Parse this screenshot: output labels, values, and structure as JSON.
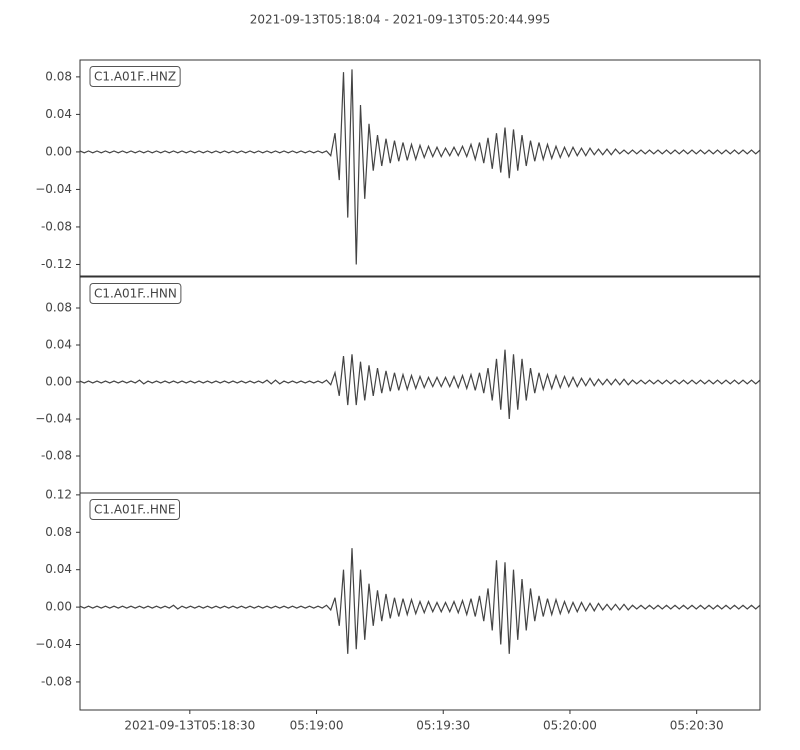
{
  "chart_data": [
    {
      "type": "line",
      "title": "2021-09-13T05:18:04  -  2021-09-13T05:20:44.995",
      "annotation": "C1.A01F..HNZ",
      "xlim": [
        "2021-09-13T05:18:04",
        "2021-09-13T05:20:44.995"
      ],
      "ylim": [
        -0.1323,
        0.098
      ],
      "yticks": [
        -0.12,
        -0.08,
        {
          "value": -0.04,
          "label": "−0.04"
        },
        {
          "value": 0,
          "label": "0.00"
        },
        0.04,
        0.08
      ],
      "series": [
        {
          "color": "#444444",
          "values": [
            0.001,
            -0.001,
            0.001,
            -0.001,
            0.001,
            -0.001,
            0.001,
            -0.001,
            0.001,
            -0.001,
            0.001,
            -0.001,
            0.001,
            -0.001,
            0.001,
            -0.001,
            0.001,
            -0.001,
            0.001,
            -0.001,
            0.001,
            -0.001,
            0.001,
            -0.001,
            0.001,
            -0.001,
            0.001,
            -0.001,
            0.001,
            -0.001,
            0.001,
            -0.001,
            0.001,
            -0.001,
            0.001,
            -0.001,
            0.001,
            -0.001,
            0.001,
            -0.001,
            0.001,
            -0.001,
            0.001,
            -0.001,
            0.001,
            -0.001,
            0.001,
            -0.001,
            0.001,
            -0.001,
            0.001,
            -0.001,
            0.001,
            -0.001,
            0.001,
            -0.001,
            0.001,
            -0.001,
            0.001,
            -0.004,
            0.02,
            -0.03,
            0.085,
            -0.07,
            0.088,
            -0.12,
            0.05,
            -0.05,
            0.03,
            -0.02,
            0.018,
            -0.015,
            0.014,
            -0.012,
            0.012,
            -0.01,
            0.01,
            -0.009,
            0.008,
            -0.008,
            0.007,
            -0.006,
            0.006,
            -0.005,
            0.005,
            -0.005,
            0.004,
            -0.004,
            0.005,
            -0.004,
            0.006,
            -0.005,
            0.008,
            -0.008,
            0.01,
            -0.012,
            0.015,
            -0.018,
            0.02,
            -0.022,
            0.026,
            -0.028,
            0.024,
            -0.02,
            0.018,
            -0.015,
            0.012,
            -0.01,
            0.01,
            -0.008,
            0.008,
            -0.007,
            0.006,
            -0.006,
            0.005,
            -0.005,
            0.005,
            -0.004,
            0.004,
            -0.004,
            0.004,
            -0.003,
            0.003,
            -0.003,
            0.003,
            -0.003,
            0.003,
            -0.002,
            0.002,
            -0.002,
            0.002,
            -0.002,
            0.002,
            -0.002,
            0.002,
            -0.002,
            0.002,
            -0.002,
            0.002,
            -0.002,
            0.002,
            -0.002,
            0.002,
            -0.002,
            0.002,
            -0.002,
            0.002,
            -0.002,
            0.002,
            -0.002,
            0.002,
            -0.002,
            0.002,
            -0.002,
            0.002,
            -0.002,
            0.002,
            -0.002,
            0.002,
            -0.002,
            0.002
          ]
        }
      ]
    },
    {
      "type": "line",
      "annotation": "C1.A01F..HNN",
      "xlim": [
        "2021-09-13T05:18:04",
        "2021-09-13T05:20:44.995"
      ],
      "ylim": [
        -0.12,
        0.1135
      ],
      "yticks": [
        -0.08,
        {
          "value": -0.04,
          "label": "−0.04"
        },
        {
          "value": 0,
          "label": "0.00"
        },
        0.04,
        0.08
      ],
      "series": [
        {
          "color": "#444444",
          "values": [
            0.001,
            -0.001,
            0.001,
            -0.001,
            0.001,
            -0.001,
            0.001,
            -0.001,
            0.001,
            -0.001,
            0.001,
            -0.001,
            0.001,
            -0.001,
            0.002,
            -0.002,
            0.001,
            -0.001,
            0.001,
            -0.001,
            0.001,
            -0.001,
            0.001,
            -0.001,
            0.001,
            -0.001,
            0.001,
            -0.001,
            0.001,
            -0.001,
            0.001,
            -0.001,
            0.001,
            -0.001,
            0.001,
            -0.001,
            0.001,
            -0.001,
            0.001,
            -0.001,
            0.001,
            -0.001,
            0.001,
            -0.001,
            0.002,
            -0.002,
            0.002,
            -0.002,
            0.001,
            -0.001,
            0.001,
            -0.001,
            0.001,
            -0.001,
            0.001,
            -0.001,
            0.001,
            -0.001,
            0.002,
            -0.003,
            0.01,
            -0.015,
            0.028,
            -0.025,
            0.03,
            -0.025,
            0.022,
            -0.02,
            0.018,
            -0.015,
            0.015,
            -0.012,
            0.012,
            -0.01,
            0.01,
            -0.009,
            0.008,
            -0.008,
            0.007,
            -0.007,
            0.006,
            -0.006,
            0.005,
            -0.005,
            0.005,
            -0.005,
            0.005,
            -0.005,
            0.006,
            -0.006,
            0.007,
            -0.007,
            0.008,
            -0.009,
            0.01,
            -0.012,
            0.015,
            -0.02,
            0.025,
            -0.03,
            0.035,
            -0.04,
            0.03,
            -0.03,
            0.025,
            -0.02,
            0.015,
            -0.012,
            0.01,
            -0.008,
            0.008,
            -0.007,
            0.007,
            -0.006,
            0.006,
            -0.005,
            0.005,
            -0.005,
            0.004,
            -0.004,
            0.004,
            -0.004,
            0.003,
            -0.003,
            0.003,
            -0.003,
            0.003,
            -0.003,
            0.003,
            -0.003,
            0.002,
            -0.002,
            0.002,
            -0.002,
            0.002,
            -0.002,
            0.002,
            -0.002,
            0.002,
            -0.002,
            0.002,
            -0.002,
            0.002,
            -0.002,
            0.002,
            -0.002,
            0.002,
            -0.002,
            0.002,
            -0.002,
            0.002,
            -0.002,
            0.002,
            -0.002,
            0.002,
            -0.002,
            0.002,
            -0.002,
            0.002,
            -0.002,
            0.002
          ]
        }
      ]
    },
    {
      "type": "line",
      "annotation": "C1.A01F..HNE",
      "xlim": [
        "2021-09-13T05:18:04",
        "2021-09-13T05:20:44.995"
      ],
      "ylim": [
        -0.11,
        0.122
      ],
      "yticks": [
        -0.08,
        {
          "value": -0.04,
          "label": "−0.04"
        },
        {
          "value": 0,
          "label": "0.00"
        },
        0.04,
        0.08,
        0.12
      ],
      "xticks": [
        {
          "value": "2021-09-13T05:18:30",
          "label": "2021-09-13T05:18:30"
        },
        {
          "value": "2021-09-13T05:19:00",
          "label": "05:19:00"
        },
        {
          "value": "2021-09-13T05:19:30",
          "label": "05:19:30"
        },
        {
          "value": "2021-09-13T05:20:00",
          "label": "05:20:00"
        },
        {
          "value": "2021-09-13T05:20:30",
          "label": "05:20:30"
        }
      ],
      "series": [
        {
          "color": "#444444",
          "values": [
            0.001,
            -0.001,
            0.001,
            -0.001,
            0.001,
            -0.001,
            0.001,
            -0.001,
            0.001,
            -0.001,
            0.001,
            -0.001,
            0.001,
            -0.001,
            0.001,
            -0.001,
            0.001,
            -0.001,
            0.001,
            -0.001,
            0.001,
            -0.001,
            0.002,
            -0.002,
            0.001,
            -0.001,
            0.001,
            -0.001,
            0.001,
            -0.001,
            0.001,
            -0.001,
            0.001,
            -0.001,
            0.001,
            -0.001,
            0.001,
            -0.001,
            0.001,
            -0.001,
            0.001,
            -0.001,
            0.001,
            -0.001,
            0.001,
            -0.001,
            0.001,
            -0.001,
            0.001,
            -0.001,
            0.001,
            -0.001,
            0.001,
            -0.001,
            0.001,
            -0.001,
            0.001,
            -0.001,
            0.002,
            -0.003,
            0.01,
            -0.02,
            0.04,
            -0.05,
            0.063,
            -0.045,
            0.04,
            -0.035,
            0.025,
            -0.02,
            0.018,
            -0.015,
            0.014,
            -0.012,
            0.01,
            -0.01,
            0.009,
            -0.008,
            0.008,
            -0.007,
            0.006,
            -0.006,
            0.006,
            -0.005,
            0.005,
            -0.005,
            0.005,
            -0.005,
            0.006,
            -0.006,
            0.007,
            -0.008,
            0.009,
            -0.01,
            0.012,
            -0.015,
            0.02,
            -0.025,
            0.05,
            -0.04,
            0.048,
            -0.05,
            0.04,
            -0.035,
            0.03,
            -0.025,
            0.02,
            -0.015,
            0.012,
            -0.01,
            0.009,
            -0.008,
            0.008,
            -0.007,
            0.006,
            -0.006,
            0.005,
            -0.005,
            0.005,
            -0.004,
            0.004,
            -0.004,
            0.004,
            -0.003,
            0.003,
            -0.003,
            0.003,
            -0.003,
            0.003,
            -0.003,
            0.002,
            -0.002,
            0.002,
            -0.002,
            0.002,
            -0.002,
            0.002,
            -0.002,
            0.002,
            -0.002,
            0.002,
            -0.002,
            0.002,
            -0.002,
            0.002,
            -0.002,
            0.002,
            -0.002,
            0.002,
            -0.002,
            0.002,
            -0.002,
            0.002,
            -0.002,
            0.002,
            -0.002,
            0.002,
            -0.002,
            0.002,
            -0.002,
            0.002
          ]
        }
      ]
    }
  ]
}
